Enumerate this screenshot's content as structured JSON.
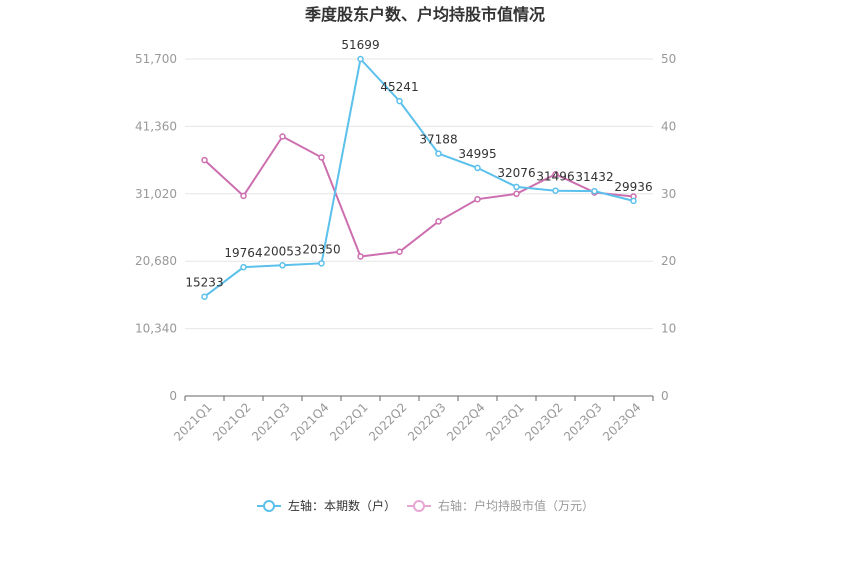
{
  "chart_data": {
    "type": "line",
    "title": "季度股东户数、户均持股市值情况",
    "categories": [
      "2021Q1",
      "2021Q2",
      "2021Q3",
      "2021Q4",
      "2022Q1",
      "2022Q2",
      "2022Q3",
      "2022Q4",
      "2023Q1",
      "2023Q2",
      "2023Q3",
      "2023Q4"
    ],
    "left_axis": {
      "min": 0,
      "max": 51700,
      "ticks": [
        "0",
        "10,340",
        "20,680",
        "31,020",
        "41,360",
        "51,700"
      ]
    },
    "right_axis": {
      "min": 0,
      "max": 50,
      "ticks": [
        "0",
        "10",
        "20",
        "30",
        "40",
        "50"
      ]
    },
    "series": [
      {
        "name": "左轴：本期数（户）",
        "axis": "left",
        "color": "#5bc0eb",
        "values": [
          15233,
          19764,
          20053,
          20350,
          51699,
          45241,
          37188,
          34995,
          32076,
          31496,
          31432,
          29936
        ],
        "labels": [
          "15233",
          "19764",
          "20053",
          "20350",
          "51699",
          "45241",
          "37188",
          "34995",
          "32076",
          "31496",
          "31432",
          "29936"
        ]
      },
      {
        "name": "右轴：户均持股市值（万元）",
        "axis": "right",
        "color": "#cc6eaf",
        "values": [
          35.0,
          29.7,
          38.5,
          35.4,
          20.7,
          21.4,
          25.9,
          29.2,
          30.0,
          32.9,
          30.2,
          29.6
        ]
      }
    ],
    "grid": true,
    "legend_position": "bottom"
  }
}
